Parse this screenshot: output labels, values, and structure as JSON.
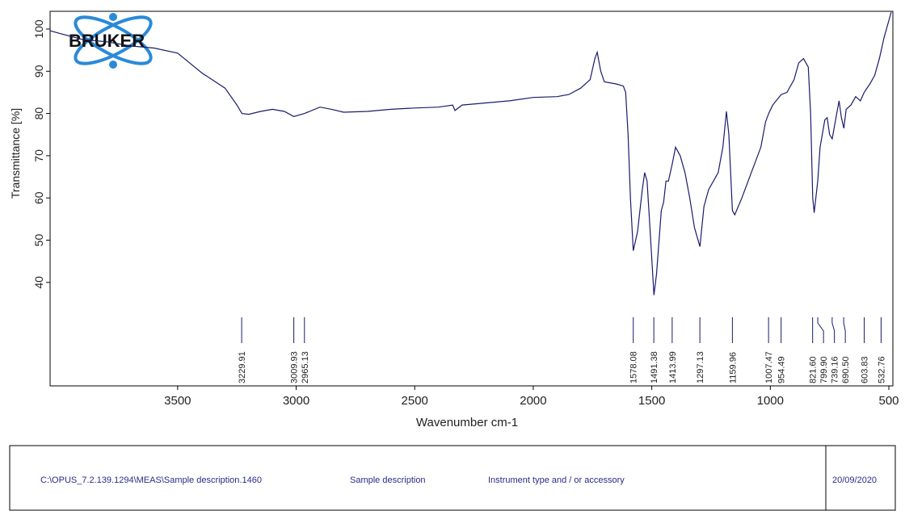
{
  "chart_data": {
    "type": "line",
    "logo": "BRUKER",
    "xlabel": "Wavenumber cm-1",
    "ylabel": "Transmittance [%]",
    "xlim": [
      4038,
      483
    ],
    "ylim": [
      15.5,
      104.2
    ],
    "xticks": [
      3500,
      3000,
      2500,
      2000,
      1500,
      1000,
      500
    ],
    "yticks": [
      40,
      50,
      60,
      70,
      80,
      90,
      100
    ],
    "x": [
      4038,
      4000,
      3900,
      3800,
      3700,
      3600,
      3500,
      3450,
      3400,
      3300,
      3250,
      3229,
      3200,
      3150,
      3100,
      3050,
      3010,
      2965,
      2900,
      2850,
      2800,
      2700,
      2600,
      2500,
      2400,
      2340,
      2330,
      2300,
      2200,
      2100,
      2000,
      1900,
      1850,
      1800,
      1760,
      1740,
      1730,
      1715,
      1700,
      1650,
      1620,
      1610,
      1600,
      1590,
      1578,
      1560,
      1540,
      1530,
      1520,
      1510,
      1491,
      1480,
      1460,
      1450,
      1440,
      1430,
      1414,
      1400,
      1380,
      1360,
      1340,
      1320,
      1297,
      1280,
      1260,
      1240,
      1220,
      1200,
      1185,
      1175,
      1160,
      1150,
      1120,
      1080,
      1040,
      1020,
      1007,
      990,
      954,
      930,
      900,
      880,
      860,
      840,
      830,
      821,
      815,
      800,
      790,
      770,
      760,
      750,
      739,
      720,
      710,
      700,
      690,
      680,
      660,
      640,
      620,
      604,
      580,
      560,
      540,
      520,
      500,
      490
    ],
    "series": [
      {
        "color": "#1a1a6e",
        "values": [
          99.6,
          99,
          97.5,
          97,
          96,
          95.5,
          94.3,
          92,
          89.7,
          86,
          82,
          80,
          79.8,
          80.5,
          81,
          80.5,
          79.3,
          80,
          81.5,
          81,
          80.3,
          80.5,
          81,
          81.3,
          81.5,
          82,
          80.7,
          82,
          82.5,
          83,
          83.8,
          84,
          84.5,
          86,
          88,
          93,
          94.5,
          90,
          87.5,
          87,
          86.5,
          85,
          75,
          60,
          47.5,
          52,
          62,
          66,
          64,
          55,
          37,
          42,
          57,
          59,
          64,
          64,
          68,
          72,
          70,
          66,
          60,
          53,
          48.5,
          58,
          62,
          64,
          66,
          72,
          80.5,
          75,
          57,
          56,
          60,
          66,
          72,
          78,
          80,
          82,
          84.5,
          85,
          88,
          92,
          93,
          91,
          80,
          60,
          56.5,
          64,
          72,
          78.5,
          79,
          75,
          74,
          80,
          83,
          79,
          76.5,
          81,
          82,
          84,
          83,
          85,
          87,
          89,
          93,
          98,
          102,
          104
        ]
      }
    ],
    "peaks": {
      "values": [
        3229.91,
        3009.93,
        2965.13,
        1578.08,
        1491.38,
        1413.99,
        1297.13,
        1159.96,
        1007.47,
        954.49,
        821.6,
        799.9,
        739.16,
        690.5,
        603.83,
        532.76
      ],
      "value_labels": [
        "3229.91",
        "3009.93",
        "2965.13",
        "1578.08",
        "1491.38",
        "1413.99",
        "1297.13",
        "1159.96",
        "1007.47",
        "954.49",
        "821.60",
        "799.90",
        "739.16",
        "690.50",
        "603.83",
        "532.76"
      ]
    }
  },
  "footer": {
    "path": "C:\\OPUS_7.2.139.1294\\MEAS\\Sample description.1460",
    "sample": "Sample description",
    "instrument": "Instrument type and / or accessory",
    "date": "20/09/2020"
  }
}
